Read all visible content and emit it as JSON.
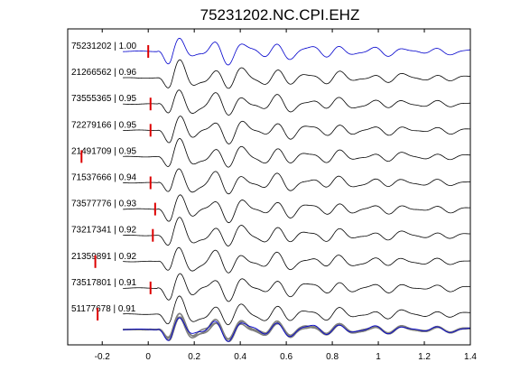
{
  "chart_data": {
    "type": "line",
    "title": "75231202.NC.CPI.EHZ",
    "xlabel": "",
    "ylabel": "",
    "xlim": [
      -0.35,
      1.4
    ],
    "xticks": [
      -0.2,
      0,
      0.2,
      0.4,
      0.6,
      0.8,
      1,
      1.2,
      1.4
    ],
    "xtick_labels": [
      "-0.2",
      "0",
      "0.2",
      "0.4",
      "0.6",
      "0.8",
      "1",
      "1.2",
      "1.4"
    ],
    "grid": false,
    "legend": "none",
    "colors": {
      "reference": "#0000cc",
      "trace": "#000000",
      "stack": "#808080",
      "pick": "#dd0000"
    },
    "traces": [
      {
        "label": "75231202 | 1.00",
        "id": "75231202",
        "cc": 1.0,
        "pick": 0.0,
        "color": "reference"
      },
      {
        "label": "21266562 | 0.96",
        "id": "21266562",
        "cc": 0.96,
        "pick": null,
        "color": "trace"
      },
      {
        "label": "73555365 | 0.95",
        "id": "73555365",
        "cc": 0.95,
        "pick": 0.01,
        "color": "trace"
      },
      {
        "label": "72279166 | 0.95",
        "id": "72279166",
        "cc": 0.95,
        "pick": 0.01,
        "color": "trace"
      },
      {
        "label": "21491709 | 0.95",
        "id": "21491709",
        "cc": 0.95,
        "pick": -0.29,
        "color": "trace"
      },
      {
        "label": "71537666 | 0.94",
        "id": "71537666",
        "cc": 0.94,
        "pick": 0.01,
        "color": "trace"
      },
      {
        "label": "73577776 | 0.93",
        "id": "73577776",
        "cc": 0.93,
        "pick": 0.03,
        "color": "trace"
      },
      {
        "label": "73217341 | 0.92",
        "id": "73217341",
        "cc": 0.92,
        "pick": 0.02,
        "color": "trace"
      },
      {
        "label": "21359891 | 0.92",
        "id": "21359891",
        "cc": 0.92,
        "pick": -0.23,
        "color": "trace"
      },
      {
        "label": "73517801 | 0.91",
        "id": "73517801",
        "cc": 0.91,
        "pick": 0.01,
        "color": "trace"
      },
      {
        "label": "51177678 | 0.91",
        "id": "51177678",
        "cc": 0.91,
        "pick": -0.22,
        "color": "trace"
      }
    ],
    "stack": {
      "label": "",
      "description": "overlay of all traces with reference"
    }
  }
}
